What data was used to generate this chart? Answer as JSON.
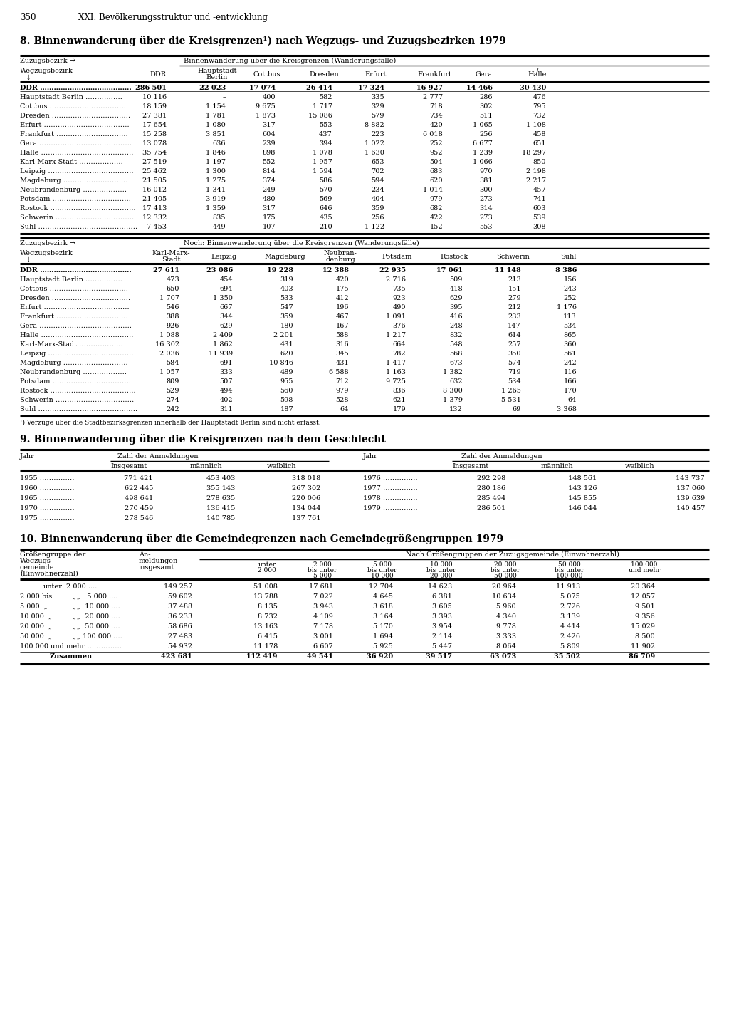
{
  "page_number": "350",
  "page_header": "XXI. Bevölkerungsstruktur und -entwicklung",
  "section8_title": "8. Binnenwanderung über die Kreisgrenzen¹) nach Wegzugs- und Zuzugsbezirken 1979",
  "t1_rows": [
    [
      "DDR ………………………………….",
      "286 501",
      "22 023",
      "17 074",
      "26 414",
      "17 324",
      "16 927",
      "14 466",
      "30 430"
    ],
    [
      "Hauptstadt Berlin …………….",
      "10 116",
      "–",
      "400",
      "582",
      "335",
      "2 777",
      "286",
      "476"
    ],
    [
      "Cottbus …………………………….",
      "18 159",
      "1 154",
      "9 675",
      "1 717",
      "329",
      "718",
      "302",
      "795"
    ],
    [
      "Dresden …………………………….",
      "27 381",
      "1 781",
      "1 873",
      "15 086",
      "579",
      "734",
      "511",
      "732"
    ],
    [
      "Erfurt ……………………………….",
      "17 654",
      "1 080",
      "317",
      "553",
      "8 882",
      "420",
      "1 065",
      "1 108"
    ],
    [
      "Frankfurt ………………………….",
      "15 258",
      "3 851",
      "604",
      "437",
      "223",
      "6 018",
      "256",
      "458"
    ],
    [
      "Gera ………………………………….",
      "13 078",
      "636",
      "239",
      "394",
      "1 022",
      "252",
      "6 677",
      "651"
    ],
    [
      "Halle ………………………………….",
      "35 754",
      "1 846",
      "898",
      "1 078",
      "1 630",
      "952",
      "1 239",
      "18 297"
    ],
    [
      "Karl-Marx-Stadt ……………….",
      "27 519",
      "1 197",
      "552",
      "1 957",
      "653",
      "504",
      "1 066",
      "850"
    ],
    [
      "Leipzig ……………………………….",
      "25 462",
      "1 300",
      "814",
      "1 594",
      "702",
      "683",
      "970",
      "2 198"
    ],
    [
      "Magdeburg ……………………….",
      "21 505",
      "1 275",
      "374",
      "586",
      "594",
      "620",
      "381",
      "2 217"
    ],
    [
      "Neubrandenburg ……………….",
      "16 012",
      "1 341",
      "249",
      "570",
      "234",
      "1 014",
      "300",
      "457"
    ],
    [
      "Potsdam …………………………….",
      "21 405",
      "3 919",
      "480",
      "569",
      "404",
      "979",
      "273",
      "741"
    ],
    [
      "Rostock ……………………………….",
      "17 413",
      "1 359",
      "317",
      "646",
      "359",
      "682",
      "314",
      "603"
    ],
    [
      "Schwerin …………………………….",
      "12 332",
      "835",
      "175",
      "435",
      "256",
      "422",
      "273",
      "539"
    ],
    [
      "Suhl …………………………………….",
      "7 453",
      "449",
      "107",
      "210",
      "1 122",
      "152",
      "553",
      "308"
    ]
  ],
  "t2_rows": [
    [
      "DDR ………………………………….",
      "27 611",
      "23 086",
      "19 228",
      "12 388",
      "22 935",
      "17 061",
      "11 148",
      "8 386"
    ],
    [
      "Hauptstadt Berlin …………….",
      "473",
      "454",
      "319",
      "420",
      "2 716",
      "509",
      "213",
      "156"
    ],
    [
      "Cottbus …………………………….",
      "650",
      "694",
      "403",
      "175",
      "735",
      "418",
      "151",
      "243"
    ],
    [
      "Dresden …………………………….",
      "1 707",
      "1 350",
      "533",
      "412",
      "923",
      "629",
      "279",
      "252"
    ],
    [
      "Erfurt ……………………………….",
      "546",
      "667",
      "547",
      "196",
      "490",
      "395",
      "212",
      "1 176"
    ],
    [
      "Frankfurt ………………………….",
      "388",
      "344",
      "359",
      "467",
      "1 091",
      "416",
      "233",
      "113"
    ],
    [
      "Gera ………………………………….",
      "926",
      "629",
      "180",
      "167",
      "376",
      "248",
      "147",
      "534"
    ],
    [
      "Halle ………………………………….",
      "1 088",
      "2 409",
      "2 201",
      "588",
      "1 217",
      "832",
      "614",
      "865"
    ],
    [
      "Karl-Marx-Stadt ……………….",
      "16 302",
      "1 862",
      "431",
      "316",
      "664",
      "548",
      "257",
      "360"
    ],
    [
      "Leipzig ……………………………….",
      "2 036",
      "11 939",
      "620",
      "345",
      "782",
      "568",
      "350",
      "561"
    ],
    [
      "Magdeburg ……………………….",
      "584",
      "691",
      "10 846",
      "431",
      "1 417",
      "673",
      "574",
      "242"
    ],
    [
      "Neubrandenburg ……………….",
      "1 057",
      "333",
      "489",
      "6 588",
      "1 163",
      "1 382",
      "719",
      "116"
    ],
    [
      "Potsdam …………………………….",
      "809",
      "507",
      "955",
      "712",
      "9 725",
      "632",
      "534",
      "166"
    ],
    [
      "Rostock ……………………………….",
      "529",
      "494",
      "560",
      "979",
      "836",
      "8 300",
      "1 265",
      "170"
    ],
    [
      "Schwerin …………………………….",
      "274",
      "402",
      "598",
      "528",
      "621",
      "1 379",
      "5 531",
      "64"
    ],
    [
      "Suhl …………………………………….",
      "242",
      "311",
      "187",
      "64",
      "179",
      "132",
      "69",
      "3 368"
    ]
  ],
  "footnote8": "¹) Verzüge über die Stadtbezirksgrenzen innerhalb der Hauptstadt Berlin sind nicht erfasst.",
  "section9_title": "9. Binnenwanderung über die Kreisgrenzen nach dem Geschlecht",
  "s9_left_rows": [
    [
      "1955 ……………",
      "771 421",
      "453 403",
      "318 018"
    ],
    [
      "1960 ……………",
      "622 445",
      "355 143",
      "267 302"
    ],
    [
      "1965 ……………",
      "498 641",
      "278 635",
      "220 006"
    ],
    [
      "1970 ……………",
      "270 459",
      "136 415",
      "134 044"
    ],
    [
      "1975 ……………",
      "278 546",
      "140 785",
      "137 761"
    ]
  ],
  "s9_right_rows": [
    [
      "1976 ……………",
      "292 298",
      "148 561",
      "143 737"
    ],
    [
      "1977 ……………",
      "280 186",
      "143 126",
      "137 060"
    ],
    [
      "1978 ……………",
      "285 494",
      "145 855",
      "139 639"
    ],
    [
      "1979 ……………",
      "286 501",
      "146 044",
      "140 457"
    ]
  ],
  "section10_title": "10. Binnenwanderung über die Gemeindegrenzen nach Gemeindegrößengruppen 1979",
  "s10_rows": [
    [
      "unter",
      "2 000 ....",
      "149 257",
      "51 008",
      "17 681",
      "12 704",
      "14 623",
      "20 964",
      "11 913",
      "20 364"
    ],
    [
      "2 000 bis",
      "„   5 000 ....",
      "59 602",
      "13 788",
      "7 022",
      "4 645",
      "6 381",
      "10 634",
      "5 075",
      "12 057"
    ],
    [
      "5 000  „",
      "„  10 000 ....",
      "37 488",
      "8 135",
      "3 943",
      "3 618",
      "3 605",
      "5 960",
      "2 726",
      "9 501"
    ],
    [
      "10 000  „",
      "„  20 000 ....",
      "36 233",
      "8 732",
      "4 109",
      "3 164",
      "3 393",
      "4 340",
      "3 139",
      "9 356"
    ],
    [
      "20 000  „",
      "„  50 000 ....",
      "58 686",
      "13 163",
      "7 178",
      "5 170",
      "3 954",
      "9 778",
      "4 414",
      "15 029"
    ],
    [
      "50 000  „",
      "„ 100 000 ....",
      "27 483",
      "6 415",
      "3 001",
      "1 694",
      "2 114",
      "3 333",
      "2 426",
      "8 500"
    ],
    [
      "100 000 und mehr ……………",
      "",
      "54 932",
      "11 178",
      "6 607",
      "5 925",
      "5 447",
      "8 064",
      "5 809",
      "11 902"
    ],
    [
      "Zusammen",
      "",
      "423 681",
      "112 419",
      "49 541",
      "36 920",
      "39 517",
      "63 073",
      "35 502",
      "86 709"
    ]
  ]
}
